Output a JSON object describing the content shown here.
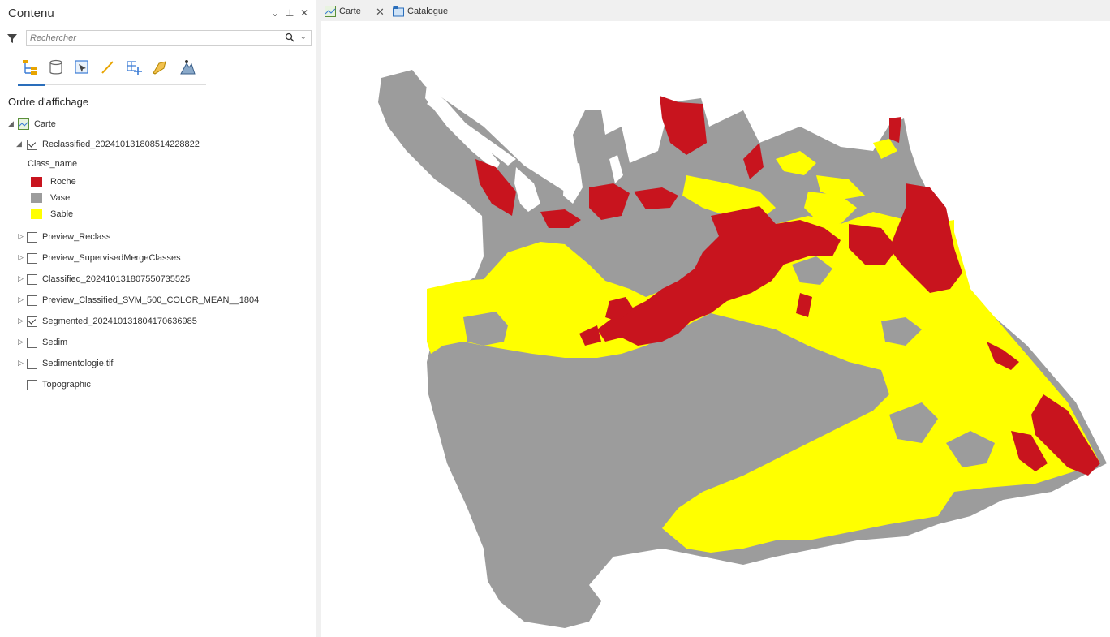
{
  "pane": {
    "title": "Contenu",
    "dropdown_glyph": "⌄",
    "pin_glyph": "⊥",
    "close_glyph": "✕",
    "search_placeholder": "Rechercher",
    "search_icon": "magnifier-icon",
    "toolbar_icons": [
      "drawing-order-icon",
      "data-source-icon",
      "selection-icon",
      "editing-icon",
      "snapping-icon",
      "labeling-icon",
      "charts-icon"
    ],
    "section_title": "Ordre d'affichage"
  },
  "tree": {
    "map_name": "Carte",
    "reclassified": "Reclassified_20241013180851422882​2",
    "class_field": "Class_name",
    "classes": [
      {
        "label": "Roche",
        "color": "#c8141e"
      },
      {
        "label": "Vase",
        "color": "#9c9c9c"
      },
      {
        "label": "Sable",
        "color": "#ffff00"
      }
    ],
    "layers": [
      {
        "label": "Preview_Reclass",
        "checked": false,
        "expander": true
      },
      {
        "label": "Preview_SupervisedMergeClasses",
        "checked": false,
        "expander": true
      },
      {
        "label": "Classified_20241013180755073552​5",
        "checked": false,
        "expander": true
      },
      {
        "label": "Preview_Classified_SVM_500_COLOR_MEAN__1804",
        "checked": false,
        "expander": true
      },
      {
        "label": "Segmented_20241013180417063698​5",
        "checked": true,
        "expander": true
      },
      {
        "label": "Sedim",
        "checked": false,
        "expander": true
      },
      {
        "label": "Sedimentologie.tif",
        "checked": false,
        "expander": true
      },
      {
        "label": "Topographic",
        "checked": false,
        "expander": false
      }
    ]
  },
  "tabs": [
    {
      "label": "Carte",
      "icon": "map-icon",
      "closable": true
    },
    {
      "label": "Catalogue",
      "icon": "catalog-icon",
      "closable": false
    }
  ],
  "tab_close_glyph": "✕",
  "colors": {
    "roche": "#c8141e",
    "vase": "#9c9c9c",
    "sable": "#ffff00",
    "accent": "#2a6ebb"
  }
}
